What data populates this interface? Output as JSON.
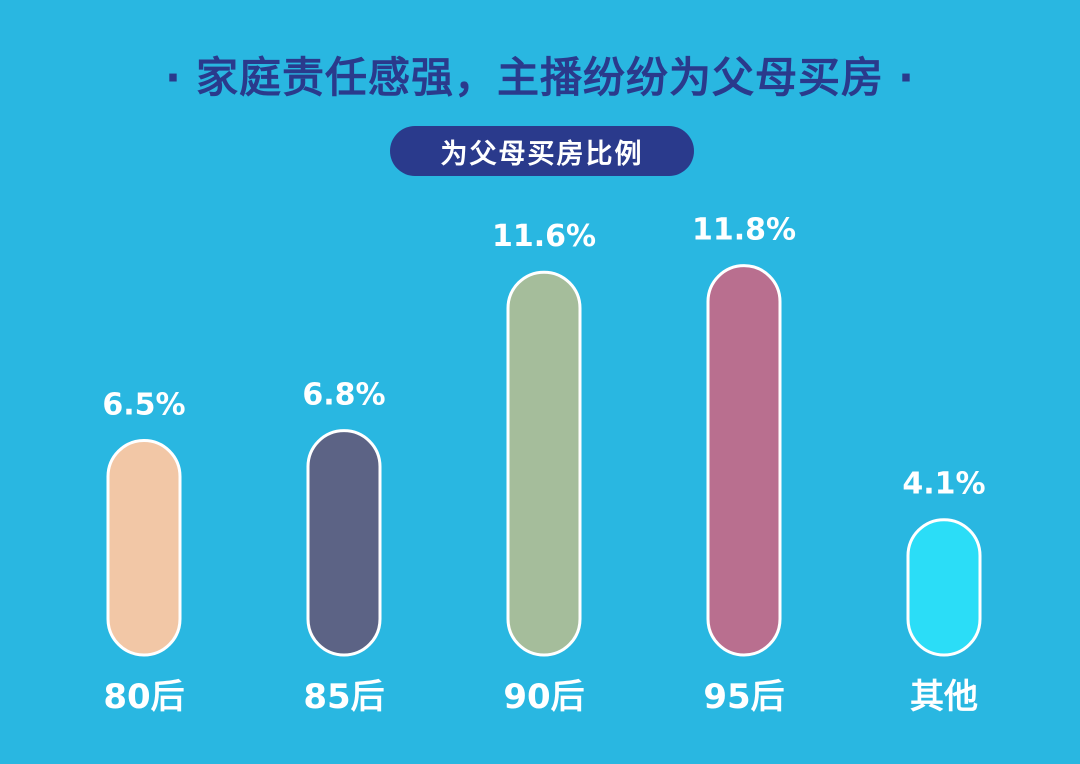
{
  "header": {
    "title": "家庭责任感强，主播纷纷为父母买房",
    "title_dot": "·",
    "subtitle": "为父母买房比例"
  },
  "colors": {
    "background": "#29b7e1",
    "title": "#2a3a8c",
    "pill": "#2a3a8c"
  },
  "chart_data": {
    "type": "bar",
    "title": "家庭责任感强，主播纷纷为父母买房",
    "subtitle": "为父母买房比例",
    "categories": [
      "80后",
      "85后",
      "90后",
      "95后",
      "其他"
    ],
    "values": [
      6.5,
      6.8,
      11.6,
      11.8,
      4.1
    ],
    "value_labels": [
      "6.5%",
      "6.8%",
      "11.6%",
      "11.8%",
      "4.1%"
    ],
    "unit": "%",
    "bar_colors": [
      "#f2c7a6",
      "#5c6385",
      "#a5bd9b",
      "#b96f8f",
      "#2bddf7"
    ],
    "xlabel": "",
    "ylabel": "",
    "ylim": [
      0,
      12
    ],
    "grid": false,
    "legend": "none"
  }
}
